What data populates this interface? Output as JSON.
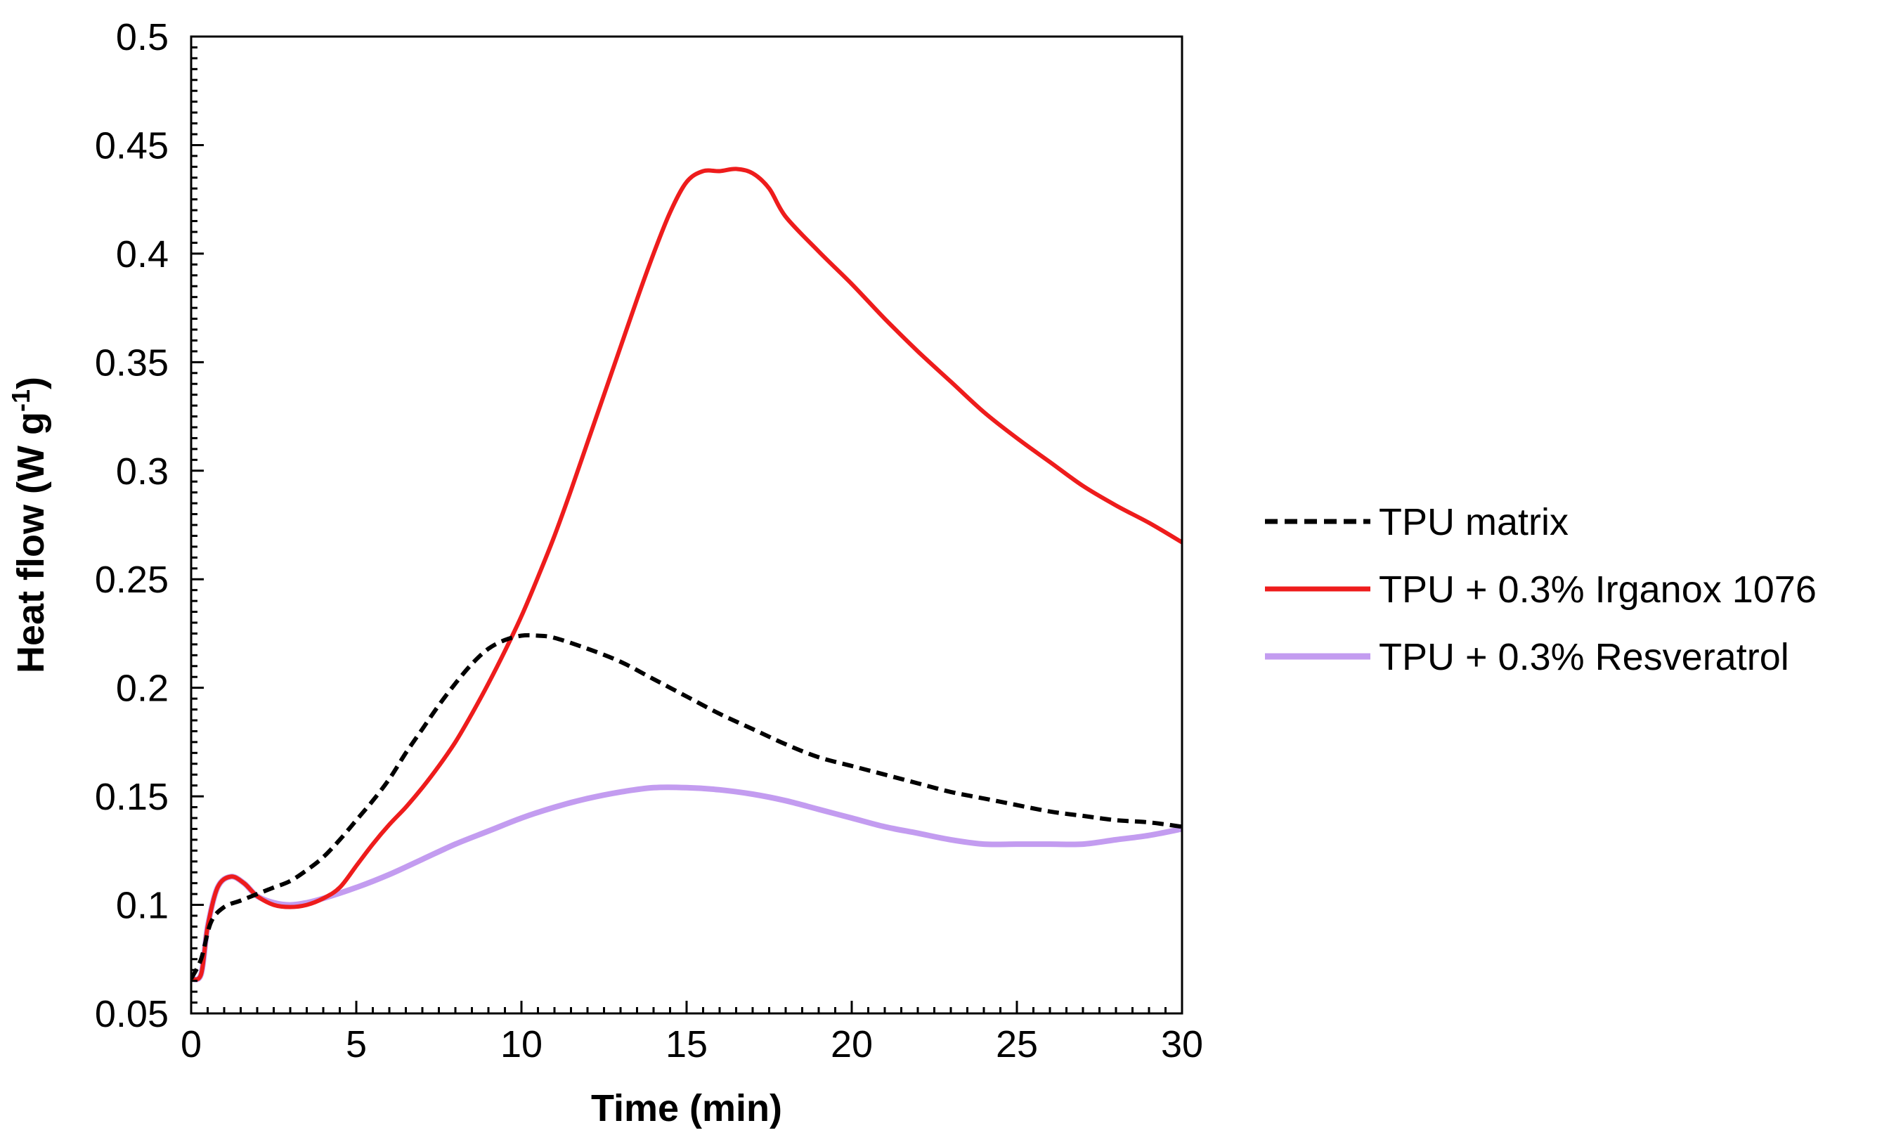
{
  "chart_data": {
    "type": "line",
    "title": "",
    "xlabel": "Time (min)",
    "ylabel": "Heat flow (W g",
    "ylabel_sup": "-1",
    "ylabel_close": ")",
    "xlim": [
      0,
      30
    ],
    "ylim": [
      0.05,
      0.5
    ],
    "xticks": [
      0,
      5,
      10,
      15,
      20,
      25,
      30
    ],
    "xtick_labels": [
      "0",
      "5",
      "10",
      "15",
      "20",
      "25",
      "30"
    ],
    "yticks": [
      0.05,
      0.1,
      0.15,
      0.2,
      0.25,
      0.3,
      0.35,
      0.4,
      0.45,
      0.5
    ],
    "ytick_labels": [
      "0.05",
      "0.1",
      "0.15",
      "0.2",
      "0.25",
      "0.3",
      "0.35",
      "0.4",
      "0.45",
      "0.5"
    ],
    "grid": false,
    "legend_position": "right",
    "series": [
      {
        "name": "TPU matrix",
        "color": "#000000",
        "style": "dashed",
        "x": [
          0,
          0.3,
          0.6,
          1,
          1.5,
          2,
          2.5,
          3,
          3.5,
          4,
          4.5,
          5,
          5.5,
          6,
          6.5,
          7,
          7.5,
          8,
          8.5,
          9,
          9.5,
          10,
          10.5,
          11,
          12,
          13,
          14,
          15,
          16,
          17,
          18,
          19,
          20,
          21,
          22,
          23,
          24,
          25,
          26,
          27,
          28,
          29,
          30
        ],
        "values": [
          0.066,
          0.075,
          0.092,
          0.099,
          0.102,
          0.105,
          0.108,
          0.111,
          0.116,
          0.122,
          0.13,
          0.139,
          0.148,
          0.158,
          0.17,
          0.181,
          0.192,
          0.202,
          0.211,
          0.218,
          0.222,
          0.224,
          0.224,
          0.223,
          0.218,
          0.212,
          0.204,
          0.196,
          0.188,
          0.181,
          0.174,
          0.168,
          0.164,
          0.16,
          0.156,
          0.152,
          0.149,
          0.146,
          0.143,
          0.141,
          0.139,
          0.138,
          0.136
        ]
      },
      {
        "name": "TPU + 0.3% Irganox 1076",
        "color": "#ee1c1c",
        "style": "solid",
        "x": [
          0,
          0.3,
          0.5,
          0.8,
          1.2,
          1.6,
          2,
          2.5,
          3,
          3.5,
          4,
          4.5,
          5,
          5.5,
          6,
          6.5,
          7,
          7.5,
          8,
          8.5,
          9,
          9.5,
          10,
          10.5,
          11,
          11.5,
          12,
          12.5,
          13,
          13.5,
          14,
          14.5,
          15,
          15.5,
          16,
          16.5,
          17,
          17.5,
          18,
          19,
          20,
          21,
          22,
          23,
          24,
          25,
          26,
          27,
          28,
          29,
          30
        ],
        "values": [
          0.066,
          0.068,
          0.09,
          0.108,
          0.113,
          0.11,
          0.104,
          0.1,
          0.099,
          0.1,
          0.103,
          0.108,
          0.118,
          0.128,
          0.137,
          0.145,
          0.154,
          0.164,
          0.175,
          0.188,
          0.202,
          0.217,
          0.233,
          0.251,
          0.27,
          0.291,
          0.313,
          0.335,
          0.357,
          0.379,
          0.4,
          0.419,
          0.433,
          0.438,
          0.438,
          0.439,
          0.437,
          0.43,
          0.417,
          0.401,
          0.386,
          0.37,
          0.355,
          0.341,
          0.327,
          0.315,
          0.304,
          0.293,
          0.284,
          0.276,
          0.267
        ]
      },
      {
        "name": "TPU + 0.3% Resveratrol",
        "color": "#c39cf0",
        "style": "solid",
        "x": [
          0,
          0.3,
          0.5,
          0.8,
          1.2,
          1.6,
          2,
          2.5,
          3,
          3.5,
          4,
          5,
          6,
          7,
          8,
          9,
          10,
          11,
          12,
          13,
          14,
          15,
          16,
          17,
          18,
          19,
          20,
          21,
          22,
          23,
          24,
          25,
          26,
          27,
          28,
          29,
          30
        ],
        "values": [
          0.066,
          0.068,
          0.09,
          0.108,
          0.113,
          0.11,
          0.104,
          0.101,
          0.1,
          0.101,
          0.103,
          0.108,
          0.114,
          0.121,
          0.128,
          0.134,
          0.14,
          0.145,
          0.149,
          0.152,
          0.154,
          0.154,
          0.153,
          0.151,
          0.148,
          0.144,
          0.14,
          0.136,
          0.133,
          0.13,
          0.128,
          0.128,
          0.128,
          0.128,
          0.13,
          0.132,
          0.135
        ]
      }
    ]
  }
}
